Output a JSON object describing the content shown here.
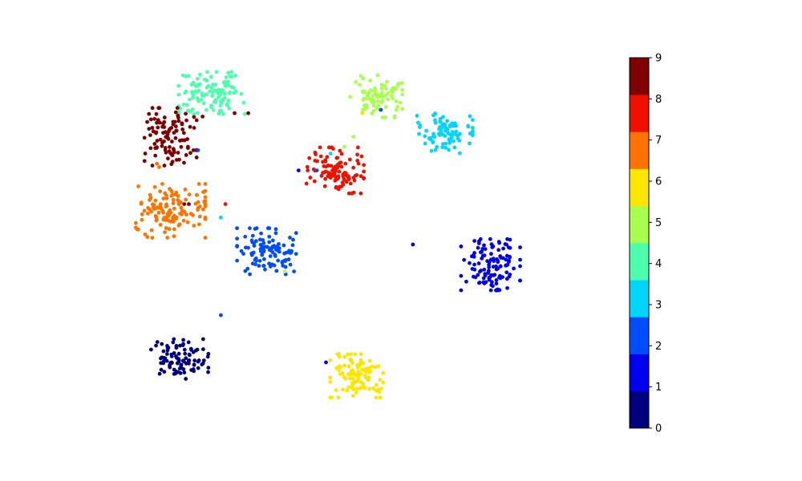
{
  "chart_data": {
    "type": "scatter",
    "title": "",
    "xlabel": "",
    "ylabel": "",
    "axes_visible": false,
    "colormap": "jet",
    "xlim": [
      0,
      100
    ],
    "ylim": [
      0,
      100
    ],
    "clusters": [
      {
        "label": 0,
        "center": [
          13,
          16
        ],
        "spread": [
          3.3,
          3.1
        ],
        "count": 95
      },
      {
        "label": 1,
        "center": [
          81,
          44
        ],
        "spread": [
          3.4,
          4.0
        ],
        "count": 120
      },
      {
        "label": 2,
        "center": [
          32,
          48
        ],
        "spread": [
          3.4,
          3.6
        ],
        "count": 105
      },
      {
        "label": 3,
        "center": [
          71,
          83
        ],
        "spread": [
          3.2,
          3.1
        ],
        "count": 90
      },
      {
        "label": 4,
        "center": [
          20,
          95
        ],
        "spread": [
          3.8,
          3.3
        ],
        "count": 115
      },
      {
        "label": 5,
        "center": [
          56,
          94
        ],
        "spread": [
          3.0,
          3.3
        ],
        "count": 85
      },
      {
        "label": 6,
        "center": [
          52,
          11
        ],
        "spread": [
          3.2,
          3.4
        ],
        "count": 110
      },
      {
        "label": 7,
        "center": [
          11,
          60
        ],
        "spread": [
          4.0,
          4.2
        ],
        "count": 130
      },
      {
        "label": 8,
        "center": [
          47,
          72
        ],
        "spread": [
          3.3,
          3.6
        ],
        "count": 110
      },
      {
        "label": 9,
        "center": [
          11,
          82
        ],
        "spread": [
          3.0,
          4.5
        ],
        "count": 105
      }
    ],
    "outliers": [
      {
        "x": 8,
        "y": 74,
        "label": 7
      },
      {
        "x": 8.5,
        "y": 73,
        "label": 7
      },
      {
        "x": 16,
        "y": 78,
        "label": 9
      },
      {
        "x": 22,
        "y": 58,
        "label": 3
      },
      {
        "x": 23,
        "y": 62,
        "label": 8
      },
      {
        "x": 14,
        "y": 62,
        "label": 9
      },
      {
        "x": 15,
        "y": 62,
        "label": 9
      },
      {
        "x": 17,
        "y": 78,
        "label": 2
      },
      {
        "x": 18,
        "y": 88,
        "label": 9
      },
      {
        "x": 25,
        "y": 89,
        "label": 9
      },
      {
        "x": 39,
        "y": 72,
        "label": 1
      },
      {
        "x": 41,
        "y": 72,
        "label": 8
      },
      {
        "x": 43,
        "y": 72,
        "label": 2
      },
      {
        "x": 49,
        "y": 79,
        "label": 5
      },
      {
        "x": 51,
        "y": 82,
        "label": 5
      },
      {
        "x": 46,
        "y": 77,
        "label": 3
      },
      {
        "x": 28,
        "y": 49,
        "label": 2
      },
      {
        "x": 38,
        "y": 42,
        "label": 2
      },
      {
        "x": 36,
        "y": 42,
        "label": 5
      },
      {
        "x": 64,
        "y": 50,
        "label": 1
      },
      {
        "x": 45,
        "y": 15,
        "label": 1
      },
      {
        "x": 53,
        "y": 89,
        "label": 6
      },
      {
        "x": 22,
        "y": 29,
        "label": 2
      },
      {
        "x": 13,
        "y": 56,
        "label": 7
      },
      {
        "x": 7,
        "y": 52,
        "label": 7
      },
      {
        "x": 57,
        "y": 90,
        "label": 2
      },
      {
        "x": 28,
        "y": 89,
        "label": 9
      }
    ],
    "colorbar": {
      "min": 0,
      "max": 9,
      "ticks": [
        "0",
        "1",
        "2",
        "3",
        "4",
        "5",
        "6",
        "7",
        "8",
        "9"
      ],
      "colors": [
        "#00007f",
        "#0000f1",
        "#004dff",
        "#00d5ff",
        "#4bffab",
        "#a9ff4d",
        "#ffe600",
        "#ff7300",
        "#f01000",
        "#7f0000"
      ]
    }
  }
}
